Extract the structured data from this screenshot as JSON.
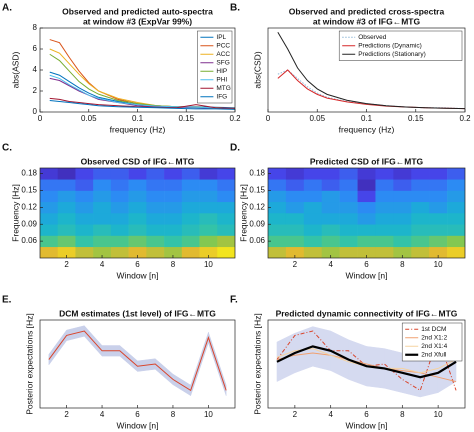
{
  "chart_data": [
    {
      "type": "line",
      "label": "A.",
      "title": [
        "Observed and predicted auto-spectra",
        "at window #3 (ExpVar 99%)"
      ],
      "xlabel": "frequency (Hz)",
      "ylabel": "abs(ASD)",
      "x": [
        0.01,
        0.02,
        0.03,
        0.04,
        0.05,
        0.06,
        0.08,
        0.1,
        0.12,
        0.14,
        0.16,
        0.18,
        0.2
      ],
      "xlim": [
        0,
        0.2
      ],
      "xticks": [
        0,
        0.05,
        0.1,
        0.15,
        0.2
      ],
      "ylim": [
        0,
        8
      ],
      "yticks": [
        0,
        2,
        4,
        6,
        8
      ],
      "legend": "upper right",
      "series": [
        {
          "name": "IPL",
          "color": "#0072BD",
          "values": [
            3.8,
            3.5,
            2.9,
            2.3,
            1.8,
            1.4,
            1.0,
            0.7,
            0.6,
            0.5,
            0.5,
            0.45,
            0.4
          ]
        },
        {
          "name": "PCC",
          "color": "#D95319",
          "values": [
            6.9,
            6.6,
            5.2,
            3.9,
            2.8,
            2.0,
            1.2,
            0.8,
            0.6,
            0.5,
            0.45,
            0.4,
            0.35
          ]
        },
        {
          "name": "ACC",
          "color": "#EDB120",
          "values": [
            6.0,
            5.6,
            4.6,
            3.6,
            2.7,
            2.0,
            1.3,
            0.9,
            0.6,
            0.5,
            0.45,
            0.4,
            0.35
          ]
        },
        {
          "name": "SFG",
          "color": "#7E2F8E",
          "values": [
            3.2,
            3.0,
            2.5,
            2.0,
            1.6,
            1.2,
            0.9,
            0.6,
            0.5,
            0.45,
            0.4,
            0.35,
            0.3
          ]
        },
        {
          "name": "HIP",
          "color": "#77AC30",
          "values": [
            5.5,
            4.9,
            3.9,
            2.9,
            2.2,
            1.7,
            1.1,
            0.8,
            0.6,
            0.5,
            0.45,
            0.4,
            0.35
          ]
        },
        {
          "name": "PHI",
          "color": "#4DBEEE",
          "values": [
            3.5,
            3.2,
            2.6,
            2.1,
            1.6,
            1.3,
            0.9,
            0.7,
            0.55,
            0.5,
            0.45,
            0.4,
            0.35
          ]
        },
        {
          "name": "MTG",
          "color": "#A2142F",
          "values": [
            1.3,
            1.2,
            1.0,
            0.9,
            0.8,
            0.7,
            0.6,
            0.5,
            0.45,
            0.4,
            0.7,
            0.4,
            0.35
          ]
        },
        {
          "name": "IFG",
          "color": "#0072BD",
          "values": [
            1.1,
            1.0,
            0.9,
            0.8,
            0.7,
            0.6,
            0.5,
            0.45,
            0.4,
            0.35,
            0.3,
            0.3,
            0.25
          ]
        }
      ]
    },
    {
      "type": "line",
      "label": "B.",
      "title": [
        "Observed and predicted cross-spectra",
        "at window #3 of IFG←MTG"
      ],
      "xlabel": "frequency (Hz)",
      "ylabel": "abs(CSD)",
      "x": [
        0.01,
        0.02,
        0.03,
        0.04,
        0.05,
        0.06,
        0.08,
        0.1,
        0.12,
        0.14,
        0.16,
        0.18,
        0.2
      ],
      "xlim": [
        0,
        0.2
      ],
      "xticks": [
        0,
        0.05,
        0.1,
        0.15,
        0.2
      ],
      "ylim": [
        0,
        2
      ],
      "legend": "upper right",
      "series": [
        {
          "name": "Observed",
          "color": "#8fb8d8",
          "dash": "dotted",
          "values": [
            0.9,
            1.0,
            0.8,
            0.6,
            0.45,
            0.35,
            0.25,
            0.2,
            0.15,
            0.12,
            0.1,
            0.1,
            0.08
          ]
        },
        {
          "name": "Predictions (Dynamic)",
          "color": "#d62728",
          "values": [
            0.8,
            1.0,
            0.75,
            0.55,
            0.42,
            0.33,
            0.24,
            0.18,
            0.14,
            0.12,
            0.1,
            0.09,
            0.08
          ]
        },
        {
          "name": "Predictions (Stationary)",
          "color": "#222222",
          "values": [
            1.9,
            1.5,
            1.05,
            0.75,
            0.55,
            0.42,
            0.28,
            0.2,
            0.15,
            0.12,
            0.1,
            0.09,
            0.08
          ]
        }
      ]
    },
    {
      "type": "heatmap",
      "label": "C.",
      "title": [
        "Observed CSD of IFG←MTG"
      ],
      "xlabel": "Window [n]",
      "ylabel": "Frequency [Hz]",
      "x": [
        1,
        2,
        3,
        4,
        5,
        6,
        7,
        8,
        9,
        10,
        11
      ],
      "y_bins": [
        0.03,
        0.05,
        0.07,
        0.09,
        0.11,
        0.13,
        0.15,
        0.17,
        0.19
      ],
      "xlim": [
        0.5,
        11.5
      ],
      "xticks": [
        2,
        4,
        6,
        8,
        10
      ],
      "ylim": [
        0.03,
        0.19
      ],
      "yticks": [
        0.06,
        0.09,
        0.12,
        0.15,
        0.18
      ],
      "zlim": [
        0,
        1
      ],
      "colormap": [
        "#3e26a8",
        "#4742e8",
        "#2e87f7",
        "#19b2d3",
        "#37c6a0",
        "#8cc848",
        "#e5b92f",
        "#f9fb15"
      ],
      "z": [
        [
          0.85,
          0.9,
          0.8,
          0.75,
          0.8,
          0.85,
          0.8,
          0.75,
          0.85,
          0.9,
          0.95
        ],
        [
          0.6,
          0.65,
          0.55,
          0.6,
          0.6,
          0.65,
          0.6,
          0.55,
          0.6,
          0.7,
          0.75
        ],
        [
          0.45,
          0.5,
          0.45,
          0.5,
          0.45,
          0.5,
          0.45,
          0.45,
          0.5,
          0.55,
          0.5
        ],
        [
          0.4,
          0.45,
          0.4,
          0.4,
          0.4,
          0.45,
          0.4,
          0.4,
          0.45,
          0.5,
          0.45
        ],
        [
          0.35,
          0.4,
          0.35,
          0.4,
          0.35,
          0.4,
          0.35,
          0.35,
          0.4,
          0.4,
          0.4
        ],
        [
          0.3,
          0.35,
          0.3,
          0.35,
          0.3,
          0.35,
          0.3,
          0.3,
          0.35,
          0.35,
          0.3
        ],
        [
          0.25,
          0.25,
          0.2,
          0.3,
          0.25,
          0.3,
          0.25,
          0.25,
          0.3,
          0.3,
          0.25
        ],
        [
          0.1,
          0.05,
          0.15,
          0.2,
          0.2,
          0.15,
          0.2,
          0.15,
          0.2,
          0.1,
          0.15
        ]
      ]
    },
    {
      "type": "heatmap",
      "label": "D.",
      "title": [
        "Predicted CSD of IFG←MTG"
      ],
      "xlabel": "Window [n]",
      "ylabel": "Frequency [Hz]",
      "x": [
        1,
        2,
        3,
        4,
        5,
        6,
        7,
        8,
        9,
        10,
        11
      ],
      "y_bins": [
        0.03,
        0.05,
        0.07,
        0.09,
        0.11,
        0.13,
        0.15,
        0.17,
        0.19
      ],
      "xlim": [
        0.5,
        11.5
      ],
      "xticks": [
        2,
        4,
        6,
        8,
        10
      ],
      "ylim": [
        0.03,
        0.19
      ],
      "yticks": [
        0.06,
        0.09,
        0.12,
        0.15,
        0.18
      ],
      "zlim": [
        0,
        1
      ],
      "colormap": [
        "#3e26a8",
        "#4742e8",
        "#2e87f7",
        "#19b2d3",
        "#37c6a0",
        "#8cc848",
        "#e5b92f",
        "#f9fb15"
      ],
      "z": [
        [
          0.8,
          0.85,
          0.8,
          0.75,
          0.8,
          0.8,
          0.8,
          0.75,
          0.8,
          0.85,
          0.9
        ],
        [
          0.6,
          0.6,
          0.55,
          0.6,
          0.55,
          0.6,
          0.6,
          0.55,
          0.6,
          0.65,
          0.7
        ],
        [
          0.5,
          0.5,
          0.45,
          0.5,
          0.45,
          0.45,
          0.45,
          0.45,
          0.5,
          0.5,
          0.5
        ],
        [
          0.45,
          0.45,
          0.4,
          0.4,
          0.4,
          0.35,
          0.4,
          0.4,
          0.45,
          0.45,
          0.45
        ],
        [
          0.4,
          0.35,
          0.4,
          0.35,
          0.35,
          0.3,
          0.35,
          0.35,
          0.4,
          0.35,
          0.4
        ],
        [
          0.35,
          0.3,
          0.3,
          0.35,
          0.3,
          0.15,
          0.3,
          0.3,
          0.3,
          0.3,
          0.35
        ],
        [
          0.25,
          0.2,
          0.25,
          0.2,
          0.25,
          0.05,
          0.25,
          0.2,
          0.25,
          0.25,
          0.3
        ],
        [
          0.15,
          0.1,
          0.15,
          0.15,
          0.2,
          0.1,
          0.15,
          0.1,
          0.15,
          0.15,
          0.2
        ]
      ]
    },
    {
      "type": "line",
      "label": "E.",
      "title": [
        "DCM estimates (1st level) of IFG←MTG"
      ],
      "xlabel": "Window [n]",
      "ylabel": "Posterior expectations [Hz]",
      "x": [
        1,
        2,
        3,
        4,
        5,
        6,
        7,
        8,
        9,
        10,
        11
      ],
      "xlim": [
        0.5,
        11.5
      ],
      "xticks": [
        2,
        4,
        6,
        8,
        10
      ],
      "ylim": [
        -1,
        1
      ],
      "series": [
        {
          "color": "#d9452b",
          "band_color": "#c9d0ea",
          "values": [
            0.1,
            0.65,
            0.75,
            0.3,
            0.3,
            -0.05,
            0.0,
            -0.35,
            -0.6,
            0.6,
            -0.6
          ],
          "error": [
            0.12,
            0.12,
            0.12,
            0.12,
            0.12,
            0.12,
            0.12,
            0.12,
            0.12,
            0.12,
            0.12
          ]
        }
      ]
    },
    {
      "type": "line",
      "label": "F.",
      "title": [
        "Predicted dynamic connectivity of IFG←MTG"
      ],
      "xlabel": "Window [n]",
      "ylabel": "Posterior expectations [Hz]",
      "x": [
        1,
        2,
        3,
        4,
        5,
        6,
        7,
        8,
        9,
        10,
        11
      ],
      "xlim": [
        0.5,
        11.5
      ],
      "xticks": [
        2,
        4,
        6,
        8,
        10
      ],
      "ylim": [
        -1,
        1
      ],
      "legend": "upper right",
      "series": [
        {
          "name": "1st DCM",
          "color": "#d9452b",
          "dash": "dashdot",
          "values": [
            0.1,
            0.65,
            0.75,
            0.3,
            0.3,
            -0.05,
            0.0,
            -0.35,
            -0.6,
            0.6,
            -0.6
          ]
        },
        {
          "name": "2nd X1:2",
          "color": "#f0a070",
          "values": [
            0.1,
            0.2,
            0.25,
            0.2,
            0.1,
            0.0,
            -0.1,
            -0.15,
            -0.2,
            -0.3,
            -0.4
          ]
        },
        {
          "name": "2nd X1:4",
          "color": "#f5d2a0",
          "values": [
            0.15,
            0.3,
            0.35,
            0.2,
            0.05,
            -0.05,
            -0.1,
            -0.1,
            -0.2,
            -0.1,
            0.1
          ]
        },
        {
          "name": "2nd Xfull",
          "color": "#000000",
          "linewidth": 2.2,
          "band_color": "#d5daf0",
          "values": [
            0.05,
            0.25,
            0.4,
            0.3,
            0.1,
            -0.05,
            -0.1,
            -0.2,
            -0.3,
            -0.2,
            0.05
          ],
          "error": [
            0.45,
            0.45,
            0.45,
            0.45,
            0.45,
            0.45,
            0.45,
            0.45,
            0.45,
            0.45,
            0.45
          ]
        }
      ]
    }
  ]
}
